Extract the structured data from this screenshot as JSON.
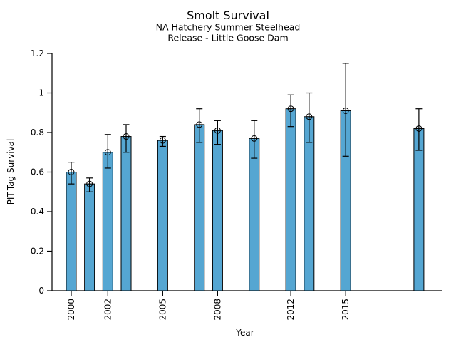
{
  "chart_data": {
    "type": "bar",
    "title": "Smolt Survival",
    "subtitle1": "NA Hatchery Summer Steelhead",
    "subtitle2": "Release - Little Goose Dam",
    "xlabel": "Year",
    "ylabel": "PIT-Tag Survival",
    "ylim": [
      0,
      1.2
    ],
    "xlim": [
      1998.95,
      2020.25
    ],
    "ytick_values": [
      0,
      0.2,
      0.4,
      0.6,
      0.8,
      1,
      1.2
    ],
    "ytick_labels": [
      "0",
      "0.2",
      "0.4",
      "0.6",
      "0.8",
      "1",
      "1.2"
    ],
    "xtick_values": [
      2000,
      2002,
      2005,
      2008,
      2012,
      2015
    ],
    "xtick_labels": [
      "2000",
      "2002",
      "2005",
      "2008",
      "2012",
      "2015"
    ],
    "grid": false,
    "legend": "none",
    "marker": "circle-plus",
    "colors": {
      "bar_fill": "#55A6D2",
      "bar_edge": "#000000",
      "axis": "#000000",
      "text": "#000000"
    },
    "series": [
      {
        "year": 2000,
        "value": 0.6,
        "err_lo": 0.54,
        "err_hi": 0.65
      },
      {
        "year": 2001,
        "value": 0.54,
        "err_lo": 0.5,
        "err_hi": 0.57
      },
      {
        "year": 2002,
        "value": 0.7,
        "err_lo": 0.62,
        "err_hi": 0.79
      },
      {
        "year": 2003,
        "value": 0.78,
        "err_lo": 0.7,
        "err_hi": 0.84
      },
      {
        "year": 2005,
        "value": 0.76,
        "err_lo": 0.73,
        "err_hi": 0.78
      },
      {
        "year": 2007,
        "value": 0.84,
        "err_lo": 0.75,
        "err_hi": 0.92
      },
      {
        "year": 2008,
        "value": 0.81,
        "err_lo": 0.74,
        "err_hi": 0.86
      },
      {
        "year": 2010,
        "value": 0.77,
        "err_lo": 0.67,
        "err_hi": 0.86
      },
      {
        "year": 2012,
        "value": 0.92,
        "err_lo": 0.83,
        "err_hi": 0.99
      },
      {
        "year": 2013,
        "value": 0.88,
        "err_lo": 0.75,
        "err_hi": 1.0
      },
      {
        "year": 2015,
        "value": 0.91,
        "err_lo": 0.68,
        "err_hi": 1.15
      },
      {
        "year": 2019,
        "value": 0.82,
        "err_lo": 0.71,
        "err_hi": 0.92
      }
    ]
  }
}
